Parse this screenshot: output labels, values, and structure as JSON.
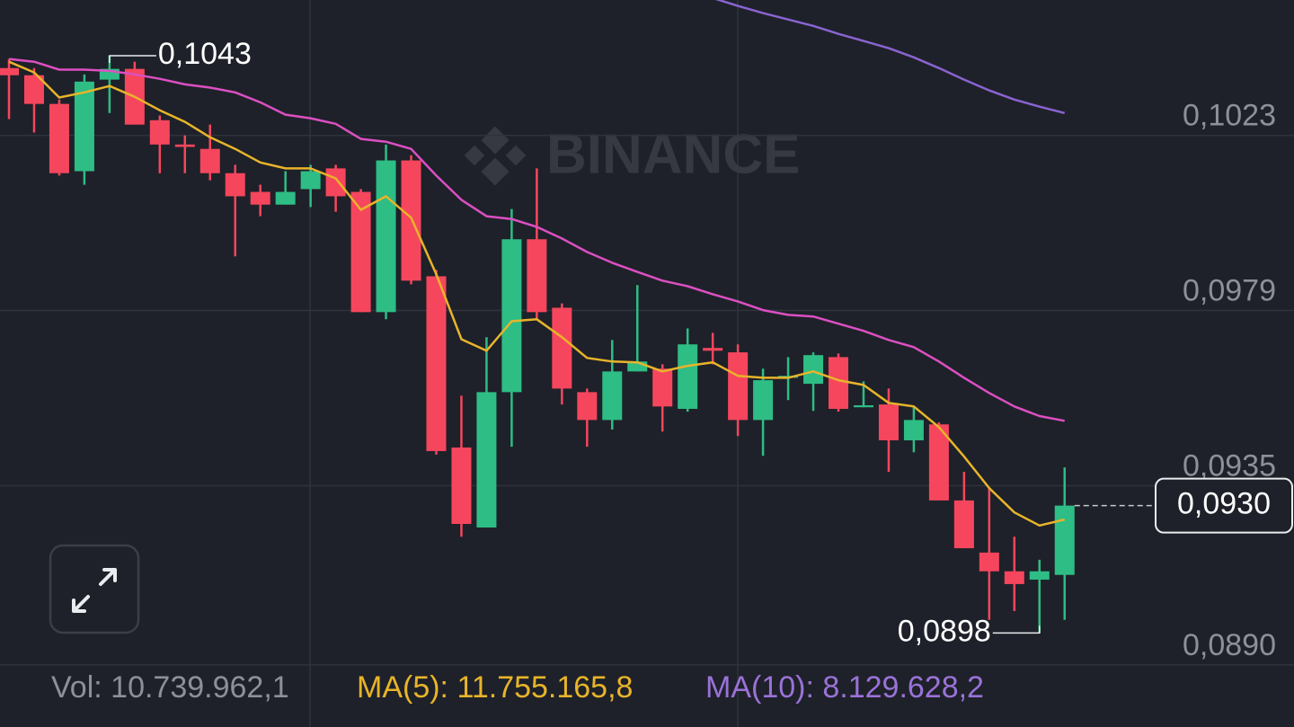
{
  "chart_data": {
    "type": "candlestick",
    "watermark": "BINANCE",
    "ylim": [
      0.0885,
      0.1057
    ],
    "yticks": [
      {
        "value": 0.1023,
        "label": "0,1023"
      },
      {
        "value": 0.0979,
        "label": "0,0979"
      },
      {
        "value": 0.0935,
        "label": "0,0935"
      },
      {
        "value": 0.089,
        "label": "0,0890"
      }
    ],
    "grid": true,
    "up_color": "#2ebd85",
    "down_color": "#f6465d",
    "open": [
      0.10399,
      0.10381,
      0.10309,
      0.1014,
      0.1037,
      0.10397,
      0.10268,
      0.10207,
      0.10196,
      0.10135,
      0.10088,
      0.10056,
      0.10095,
      0.10147,
      0.10088,
      0.09786,
      0.10167,
      0.09876,
      0.09446,
      0.09245,
      0.09585,
      0.09969,
      0.09797,
      0.09585,
      0.09515,
      0.09637,
      0.09644,
      0.09543,
      0.09696,
      0.09685,
      0.09515,
      0.09621,
      0.09606,
      0.09673,
      0.09547,
      0.09554,
      0.09464,
      0.09504,
      0.09313,
      0.09182,
      0.09135,
      0.09114,
      0.09126
    ],
    "high": [
      0.10422,
      0.10399,
      0.1032,
      0.10383,
      0.1043,
      0.10415,
      0.1028,
      0.1023,
      0.10257,
      0.10156,
      0.10106,
      0.1014,
      0.10156,
      0.10156,
      0.10095,
      0.10207,
      0.1018,
      0.09892,
      0.09576,
      0.09723,
      0.10045,
      0.10147,
      0.09808,
      0.09594,
      0.09716,
      0.09854,
      0.09655,
      0.09745,
      0.09734,
      0.09705,
      0.09644,
      0.09673,
      0.09685,
      0.09682,
      0.09612,
      0.09594,
      0.09549,
      0.09509,
      0.09385,
      0.09344,
      0.09222,
      0.09164,
      0.09396
    ],
    "low": [
      0.10271,
      0.10237,
      0.10129,
      0.10106,
      0.10286,
      0.10257,
      0.10135,
      0.10135,
      0.10117,
      0.09926,
      0.10027,
      0.10056,
      0.1005,
      0.10038,
      0.09786,
      0.09768,
      0.09856,
      0.09428,
      0.09222,
      0.09245,
      0.09448,
      0.09768,
      0.09554,
      0.09448,
      0.09491,
      0.09637,
      0.09486,
      0.09536,
      0.09655,
      0.09475,
      0.09425,
      0.09565,
      0.09538,
      0.09536,
      0.09547,
      0.09385,
      0.09434,
      0.09313,
      0.09193,
      0.09013,
      0.09035,
      0.0898,
      0.09013
    ],
    "close": [
      0.10381,
      0.10309,
      0.10135,
      0.10365,
      0.10397,
      0.10257,
      0.10207,
      0.10201,
      0.10135,
      0.10077,
      0.10056,
      0.10088,
      0.1014,
      0.10077,
      0.09786,
      0.10167,
      0.09865,
      0.09437,
      0.09254,
      0.09585,
      0.09969,
      0.09786,
      0.09594,
      0.09515,
      0.09637,
      0.09662,
      0.09549,
      0.09705,
      0.09689,
      0.09515,
      0.09615,
      0.09626,
      0.09678,
      0.09543,
      0.09552,
      0.09464,
      0.09515,
      0.09313,
      0.09193,
      0.09135,
      0.09103,
      0.09135,
      0.093
    ],
    "lines": [
      {
        "color": "#e8b42a",
        "values": [
          0.10415,
          0.10388,
          0.10325,
          0.10338,
          0.10354,
          0.10327,
          0.10293,
          0.10264,
          0.10225,
          0.10196,
          0.10162,
          0.10147,
          0.10147,
          0.10122,
          0.10043,
          0.10077,
          0.10023,
          0.09881,
          0.09718,
          0.09689,
          0.09763,
          0.09768,
          0.09723,
          0.09671,
          0.09662,
          0.0966,
          0.09637,
          0.09651,
          0.0966,
          0.09626,
          0.09621,
          0.09621,
          0.09637,
          0.09615,
          0.09603,
          0.09558,
          0.09549,
          0.09497,
          0.09423,
          0.09344,
          0.09283,
          0.0925,
          0.09265
        ]
      },
      {
        "color": "#dc4fc2",
        "values": [
          0.10422,
          0.10415,
          0.10395,
          0.10395,
          0.10392,
          0.10383,
          0.10372,
          0.10358,
          0.1035,
          0.10338,
          0.10313,
          0.10282,
          0.10273,
          0.10259,
          0.10221,
          0.10214,
          0.10196,
          0.10129,
          0.10068,
          0.10027,
          0.1002,
          0.1,
          0.09971,
          0.09937,
          0.0991,
          0.09887,
          0.09865,
          0.09851,
          0.09831,
          0.09813,
          0.09791,
          0.09779,
          0.09775,
          0.09757,
          0.09739,
          0.09716,
          0.09698,
          0.09662,
          0.09621,
          0.09583,
          0.09549,
          0.09525,
          0.09513
        ]
      },
      {
        "color": "#8a63d2",
        "values": [
          null,
          null,
          null,
          null,
          null,
          null,
          null,
          null,
          null,
          null,
          null,
          null,
          null,
          null,
          null,
          null,
          null,
          null,
          null,
          null,
          null,
          null,
          null,
          null,
          null,
          null,
          null,
          null,
          0.10575,
          0.10555,
          0.10537,
          0.10521,
          0.10505,
          0.10485,
          0.10467,
          0.10449,
          0.10426,
          0.10399,
          0.1037,
          0.10343,
          0.1032,
          0.10302,
          0.10286
        ]
      }
    ],
    "high_marker": {
      "value": 0.1043,
      "label": "0,1043"
    },
    "low_marker": {
      "value": 0.0898,
      "label": "0,0898"
    },
    "last_price": {
      "value": 0.093,
      "label": "0,0930"
    },
    "footer": [
      {
        "text": "Vol: 10.739.962,1",
        "color": "#8d9099"
      },
      {
        "text": "MA(5): 11.755.165,8",
        "color": "#e8b42a"
      },
      {
        "text": "MA(10): 8.129.628,2",
        "color": "#9a72d8"
      }
    ]
  }
}
